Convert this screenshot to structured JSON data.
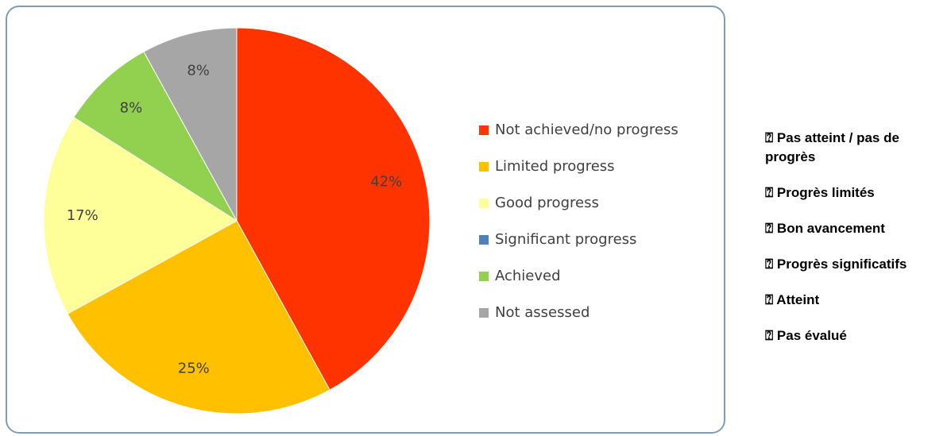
{
  "chart_data": {
    "type": "pie",
    "categories": [
      "Not achieved/no progress",
      "Limited progress",
      "Good progress",
      "Significant progress",
      "Achieved",
      "Not assessed"
    ],
    "values": [
      42,
      25,
      17,
      0,
      8,
      8
    ],
    "value_labels": [
      "42%",
      "25%",
      "17%",
      null,
      "8%",
      "8%"
    ],
    "colors": [
      "#ff3300",
      "#ffc000",
      "#ffff99",
      "#4f81bd",
      "#92d050",
      "#a6a6a6"
    ],
    "legend": "right"
  },
  "side_list": {
    "items": [
      "⍰ Pas atteint / pas de progrès",
      "⍰ Progrès limités",
      "⍰ Bon avancement",
      "⍰ Progrès significatifs",
      "⍰ Atteint",
      "⍰ Pas évalué"
    ]
  }
}
